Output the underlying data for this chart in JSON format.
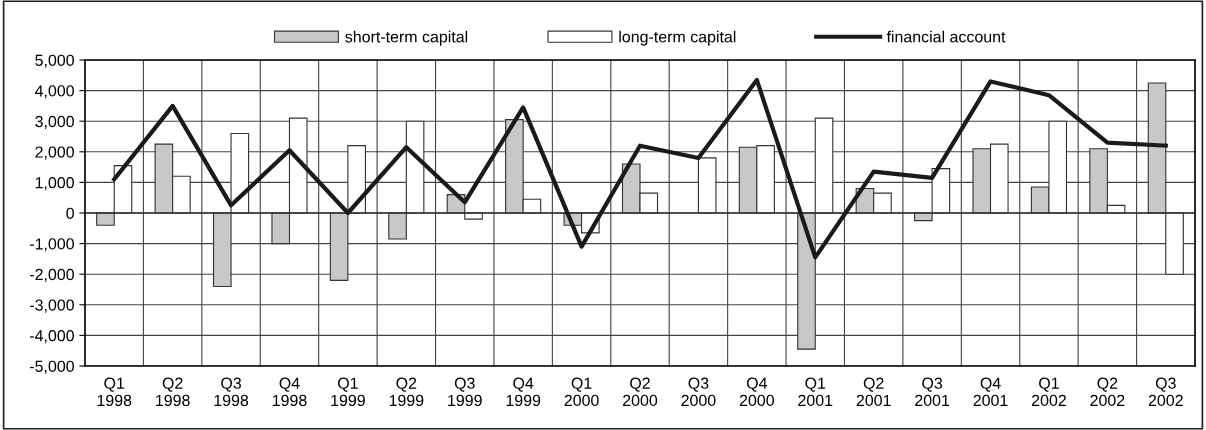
{
  "chart_data": {
    "type": "bar",
    "categories": [
      "Q1\n1998",
      "Q2\n1998",
      "Q3\n1998",
      "Q4\n1998",
      "Q1\n1999",
      "Q2\n1999",
      "Q3\n1999",
      "Q4\n1999",
      "Q1\n2000",
      "Q2\n2000",
      "Q3\n2000",
      "Q4\n2000",
      "Q1\n2001",
      "Q2\n2001",
      "Q3\n2001",
      "Q4\n2001",
      "Q1\n2002",
      "Q2\n2002",
      "Q3\n2002"
    ],
    "series": [
      {
        "name": "short-term capital",
        "color": "#c8c8c8",
        "values": [
          -400,
          2250,
          -2400,
          -1000,
          -2200,
          -850,
          600,
          3050,
          -400,
          1600,
          null,
          2150,
          -4450,
          800,
          -250,
          2100,
          850,
          2100,
          4250
        ]
      },
      {
        "name": "long-term capital",
        "color": "#ffffff",
        "values": [
          1550,
          1200,
          2600,
          3100,
          2200,
          3000,
          -200,
          450,
          -650,
          650,
          1800,
          2200,
          3100,
          650,
          1450,
          2250,
          3000,
          250,
          -2000
        ]
      },
      {
        "name": "financial account",
        "type": "line",
        "color": "#1a1a1a",
        "values": [
          1100,
          3500,
          250,
          2050,
          0,
          2150,
          350,
          3450,
          -1100,
          2200,
          1800,
          4350,
          -1450,
          1350,
          1150,
          4300,
          3850,
          2300,
          2200
        ]
      }
    ],
    "ylim": [
      -5000,
      5000
    ],
    "yticks": [
      {
        "value": -5000,
        "label": "-5,000"
      },
      {
        "value": -4000,
        "label": "-4,000"
      },
      {
        "value": -3000,
        "label": "-3,000"
      },
      {
        "value": -2000,
        "label": "-2,000"
      },
      {
        "value": -1000,
        "label": "-1,000"
      },
      0,
      {
        "value": 1000,
        "label": "1,000"
      },
      {
        "value": 2000,
        "label": "2,000"
      },
      {
        "value": 3000,
        "label": "3,000"
      },
      {
        "value": 4000,
        "label": "4,000"
      },
      {
        "value": 5000,
        "label": "5,000"
      }
    ],
    "grid": true,
    "legend": "top",
    "marker": "none",
    "line_style": "solid"
  }
}
